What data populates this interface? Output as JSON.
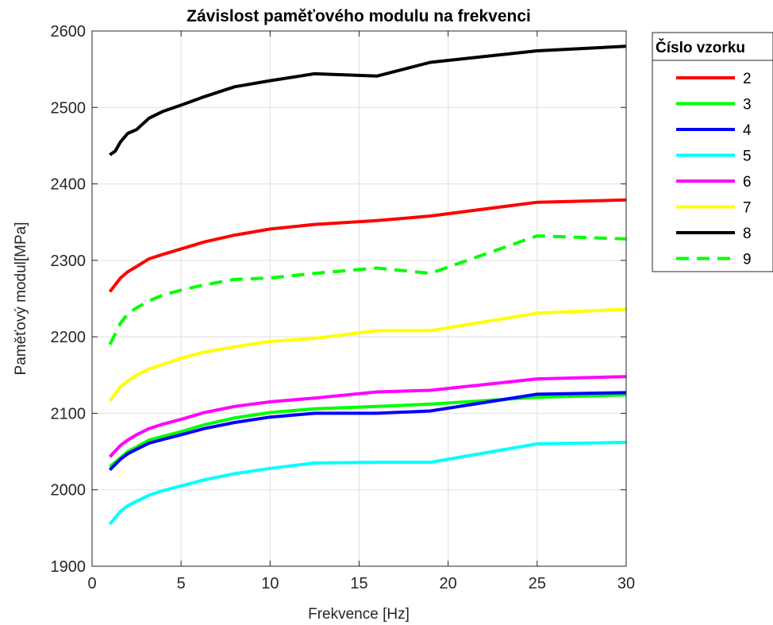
{
  "chart_data": {
    "type": "line",
    "title": "Závislost paměťového modulu na frekvenci",
    "xlabel": "Frekvence [Hz]",
    "ylabel": "Paměťový modul[MPa]",
    "xlim": [
      0,
      30
    ],
    "ylim": [
      1900,
      2600
    ],
    "xticks": [
      "0",
      "5",
      "10",
      "15",
      "20",
      "25",
      "30"
    ],
    "yticks": [
      "1900",
      "2000",
      "2100",
      "2200",
      "2300",
      "2400",
      "2500",
      "2600"
    ],
    "grid": true,
    "legend": {
      "title": "Číslo vzorku",
      "placement": "outside-top-right"
    },
    "series": [
      {
        "name": "2",
        "color": "#ff0000",
        "dash": "solid",
        "x": [
          1,
          1.6,
          2,
          2.5,
          3.2,
          4,
          5,
          6.3,
          8,
          10,
          12.5,
          16,
          19,
          25,
          30
        ],
        "y": [
          2259,
          2277,
          2285,
          2292,
          2302,
          2308,
          2315,
          2324,
          2333,
          2341,
          2347,
          2352,
          2358,
          2376,
          2379
        ]
      },
      {
        "name": "3",
        "color": "#00ff00",
        "dash": "solid",
        "x": [
          1,
          1.6,
          2,
          2.5,
          3.2,
          4,
          5,
          6.3,
          8,
          10,
          12.5,
          16,
          19,
          25,
          30
        ],
        "y": [
          2030,
          2042,
          2050,
          2056,
          2065,
          2070,
          2076,
          2085,
          2094,
          2101,
          2106,
          2109,
          2112,
          2121,
          2124
        ]
      },
      {
        "name": "4",
        "color": "#0000ff",
        "dash": "solid",
        "x": [
          1,
          1.6,
          2,
          2.5,
          3.2,
          4,
          5,
          6.3,
          8,
          10,
          12.5,
          16,
          19,
          25,
          30
        ],
        "y": [
          2026,
          2040,
          2047,
          2053,
          2061,
          2066,
          2072,
          2080,
          2088,
          2095,
          2100,
          2100,
          2103,
          2125,
          2127
        ]
      },
      {
        "name": "5",
        "color": "#00ffff",
        "dash": "solid",
        "x": [
          1,
          1.6,
          2,
          2.5,
          3.2,
          4,
          5,
          6.3,
          8,
          10,
          12.5,
          16,
          19,
          25,
          30
        ],
        "y": [
          1955,
          1972,
          1979,
          1985,
          1993,
          1999,
          2005,
          2013,
          2021,
          2028,
          2035,
          2036,
          2036,
          2060,
          2062
        ]
      },
      {
        "name": "6",
        "color": "#ff00ff",
        "dash": "solid",
        "x": [
          1,
          1.6,
          2,
          2.5,
          3.2,
          4,
          5,
          6.3,
          8,
          10,
          12.5,
          16,
          19,
          25,
          30
        ],
        "y": [
          2043,
          2058,
          2065,
          2072,
          2080,
          2086,
          2092,
          2101,
          2109,
          2115,
          2120,
          2128,
          2130,
          2145,
          2148
        ]
      },
      {
        "name": "7",
        "color": "#ffff00",
        "dash": "solid",
        "x": [
          1,
          1.6,
          2,
          2.5,
          3.2,
          4,
          5,
          6.3,
          8,
          10,
          12.5,
          16,
          19,
          25,
          30
        ],
        "y": [
          2116,
          2135,
          2142,
          2150,
          2158,
          2164,
          2172,
          2180,
          2187,
          2194,
          2198,
          2208,
          2208,
          2231,
          2236
        ]
      },
      {
        "name": "8",
        "color": "#000000",
        "dash": "solid",
        "x": [
          1,
          1.3,
          1.6,
          2,
          2.5,
          3.2,
          4,
          5,
          6.3,
          8,
          10,
          12.5,
          16,
          19,
          25,
          30
        ],
        "y": [
          2438,
          2443,
          2455,
          2466,
          2471,
          2486,
          2495,
          2503,
          2514,
          2527,
          2535,
          2544,
          2541,
          2559,
          2574,
          2580
        ]
      },
      {
        "name": "9",
        "color": "#00ff00",
        "dash": "dashed",
        "x": [
          1,
          1.6,
          2,
          2.5,
          3.2,
          4,
          5,
          6.3,
          8,
          10,
          12.5,
          16,
          19,
          25,
          30
        ],
        "y": [
          2190,
          2218,
          2230,
          2238,
          2247,
          2255,
          2261,
          2268,
          2275,
          2277,
          2283,
          2290,
          2283,
          2332,
          2328
        ]
      }
    ]
  }
}
